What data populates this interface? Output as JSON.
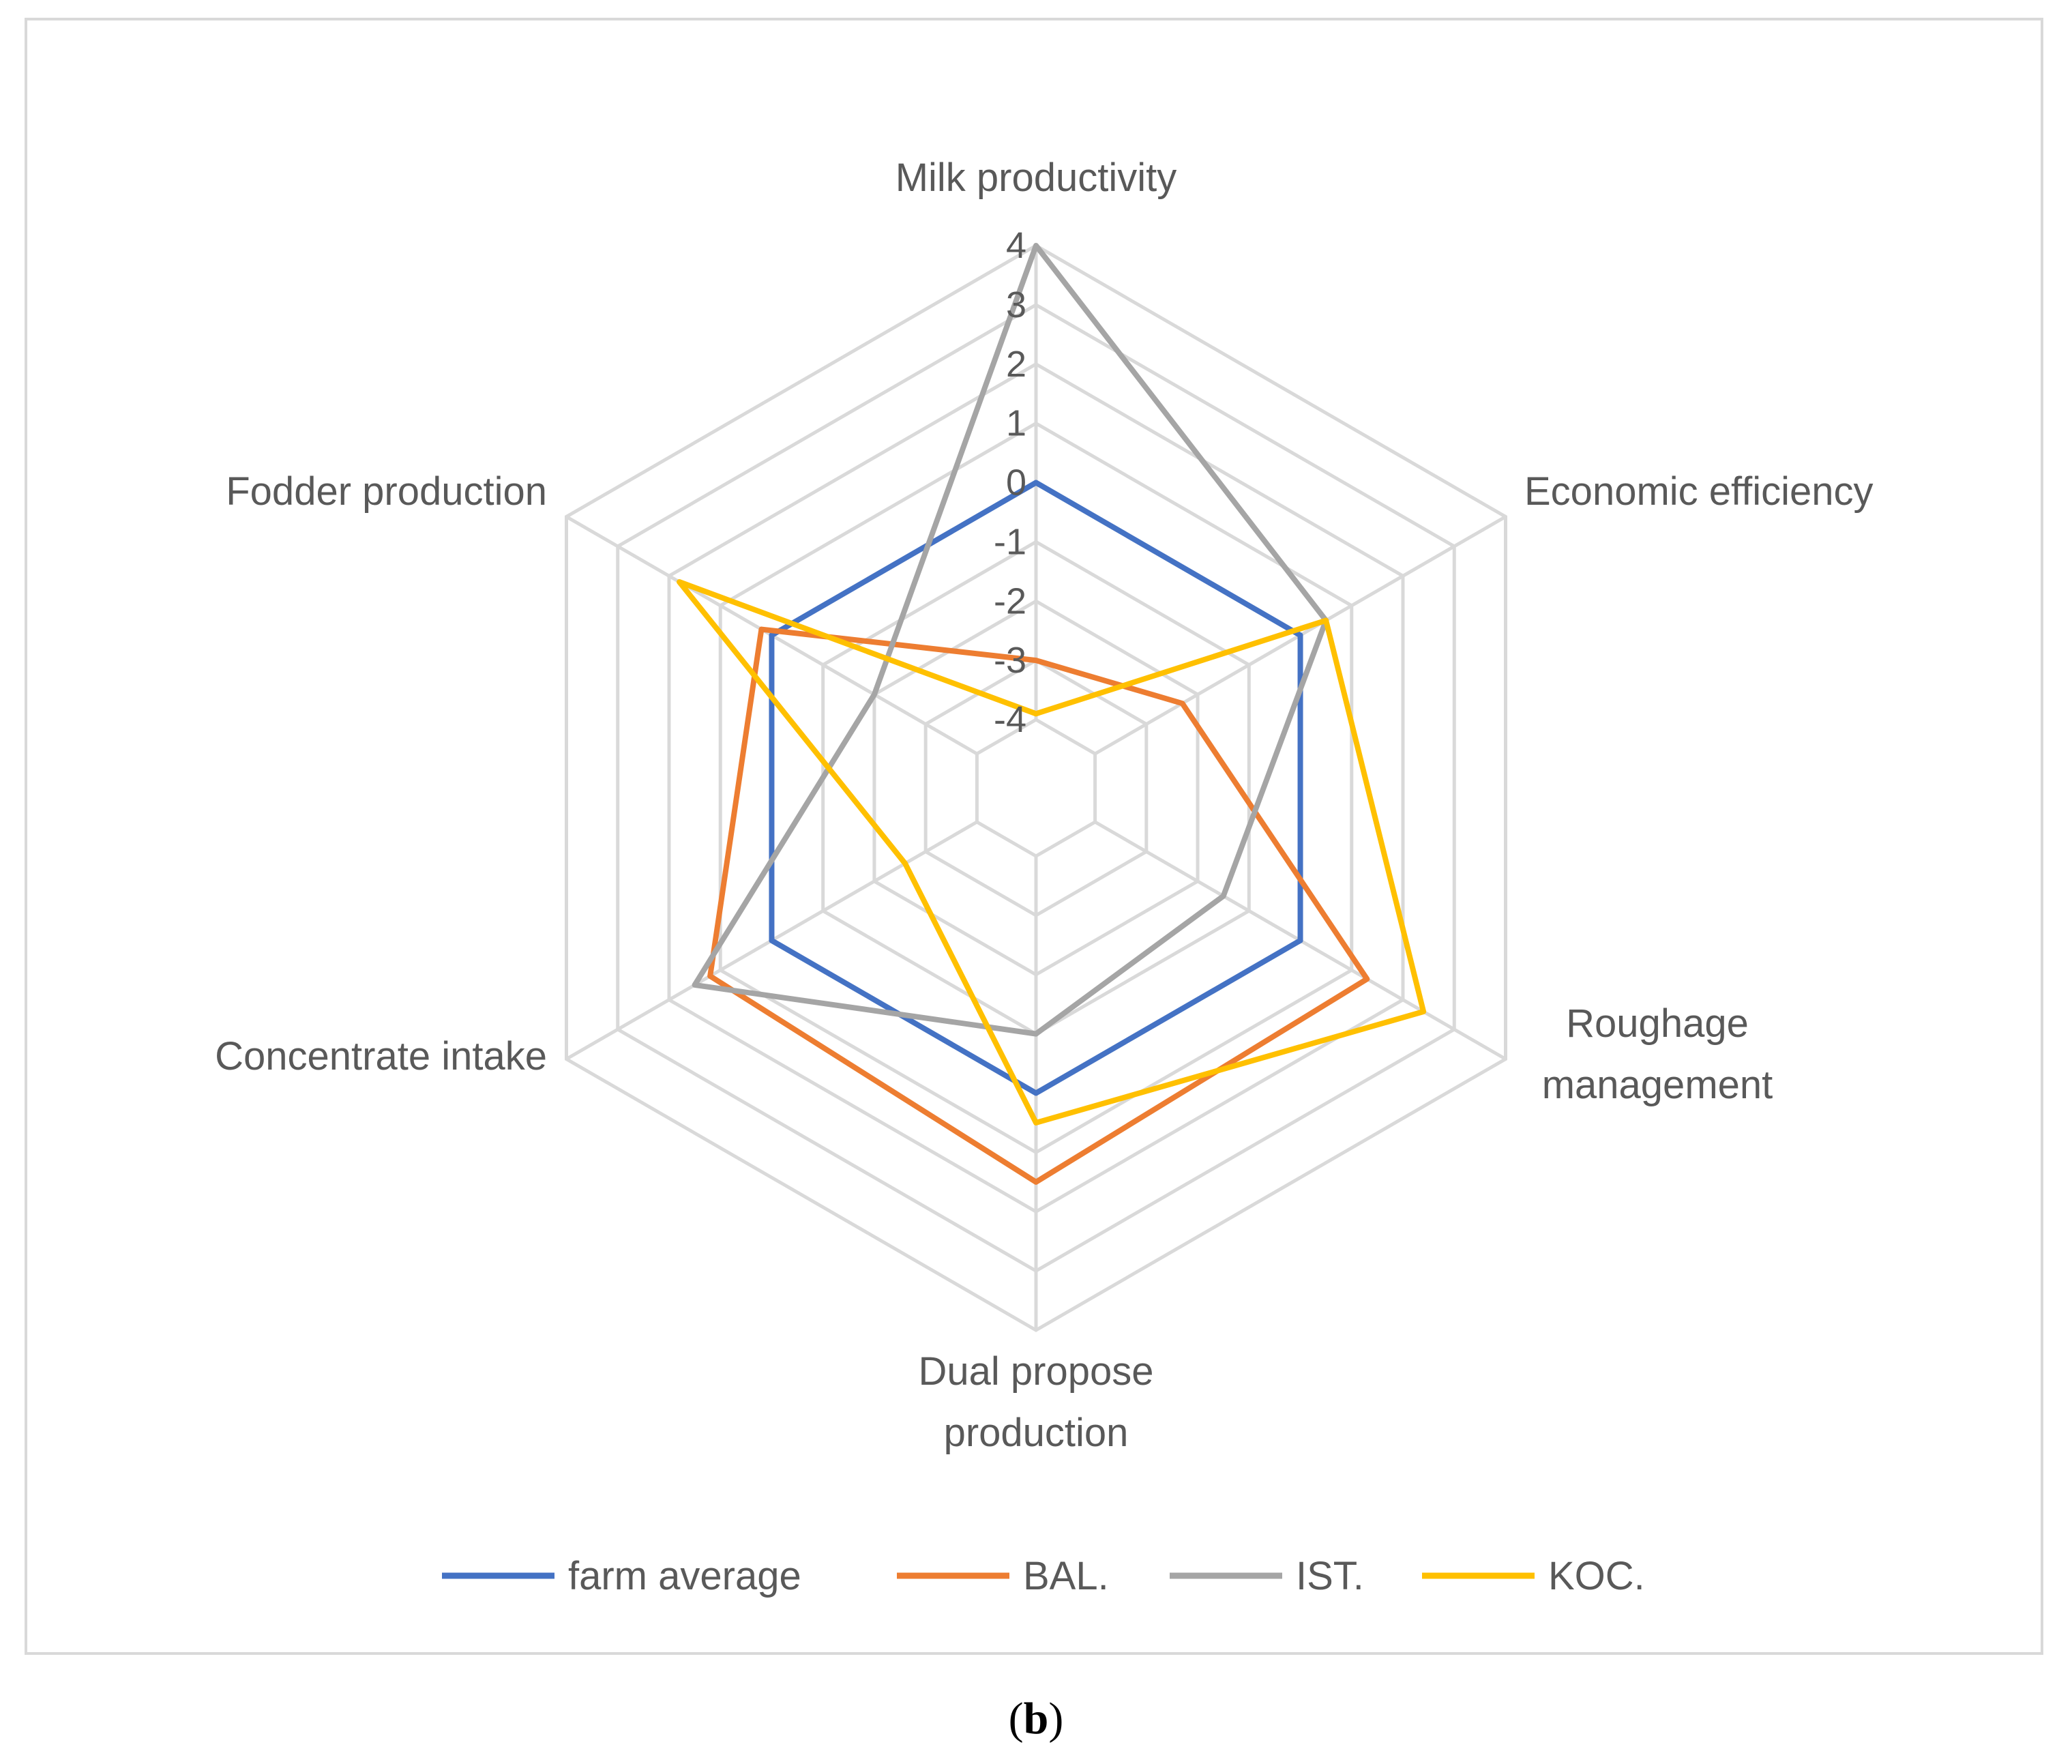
{
  "chart_data": {
    "type": "radar",
    "axes": [
      "Milk productivity",
      "Economic efficiency",
      "Roughage management",
      "Dual propose production",
      "Concentrate intake",
      "Fodder production"
    ],
    "axis_label_lines": [
      [
        "Milk productivity"
      ],
      [
        "Economic efficiency"
      ],
      [
        "Roughage",
        "management"
      ],
      [
        "Dual propose",
        "production"
      ],
      [
        "Concentrate intake"
      ],
      [
        "Fodder production"
      ]
    ],
    "rlim": [
      -4,
      4
    ],
    "ticks": [
      4,
      3,
      2,
      1,
      0,
      -1,
      -2,
      -3,
      -4
    ],
    "tick_labels": [
      "4",
      "3",
      "2",
      "1",
      "0",
      "-1",
      "-2",
      "-3",
      "-4"
    ],
    "series": [
      {
        "name": "farm average",
        "color": "#4472C4",
        "values": [
          0,
          0,
          0,
          0,
          0,
          0
        ]
      },
      {
        "name": "BAL.",
        "color": "#ED7D31",
        "values": [
          -3,
          -2.3,
          1.3,
          1.5,
          1.2,
          0.2
        ]
      },
      {
        "name": "IST.",
        "color": "#A5A5A5",
        "values": [
          4,
          0.5,
          -1.5,
          -1,
          1.5,
          -2
        ]
      },
      {
        "name": "KOC.",
        "color": "#FFC000",
        "values": [
          -3.9,
          0.5,
          2.4,
          0.5,
          -2.6,
          1.8
        ]
      }
    ],
    "legend_position": "bottom"
  },
  "caption": {
    "open": "(",
    "letter": "b",
    "close": ")"
  }
}
